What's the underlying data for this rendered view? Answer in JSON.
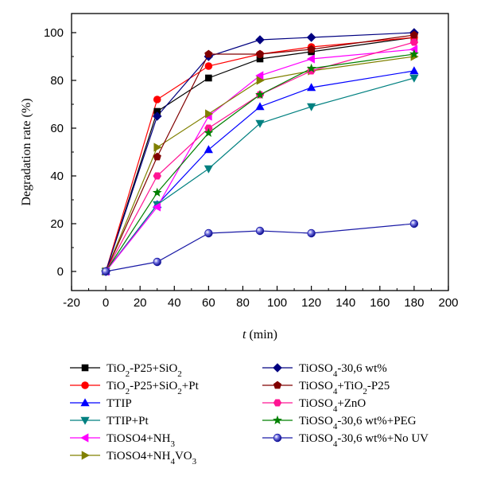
{
  "chart_data": {
    "type": "line",
    "title": "",
    "xlabel_var": "t",
    "xlabel_unit": " (min)",
    "ylabel": "Degradation rate (%)",
    "xlim": [
      -20,
      200
    ],
    "ylim": [
      -8,
      108
    ],
    "xticks": [
      -20,
      0,
      20,
      40,
      60,
      80,
      100,
      120,
      140,
      160,
      180,
      200
    ],
    "yticks": [
      0,
      20,
      40,
      60,
      80,
      100
    ],
    "x": [
      0,
      30,
      60,
      90,
      120,
      180
    ],
    "grid": false,
    "legend_position": "below",
    "series": [
      {
        "name": "TiO2-P25+SiO2",
        "legend": [
          [
            "TiO",
            ""
          ],
          [
            "2",
            "sub"
          ],
          [
            "-P25+SiO",
            ""
          ],
          [
            "2",
            "sub"
          ]
        ],
        "color": "#000000",
        "marker": "square",
        "values": [
          0,
          67,
          81,
          89,
          92,
          98
        ]
      },
      {
        "name": "TiO2-P25+SiO2+Pt",
        "legend": [
          [
            "TiO",
            ""
          ],
          [
            "2",
            "sub"
          ],
          [
            "-P25+SiO",
            ""
          ],
          [
            "2",
            "sub"
          ],
          [
            "+Pt",
            ""
          ]
        ],
        "color": "#ff0000",
        "marker": "circle",
        "values": [
          0,
          72,
          86,
          91,
          94,
          98
        ]
      },
      {
        "name": "TTIP",
        "legend": [
          [
            "TTIP",
            ""
          ]
        ],
        "color": "#0000ff",
        "marker": "triangle-up",
        "values": [
          0,
          28,
          51,
          69,
          77,
          84
        ]
      },
      {
        "name": "TTIP+Pt",
        "legend": [
          [
            "TTIP+Pt",
            ""
          ]
        ],
        "color": "#008080",
        "marker": "triangle-down",
        "values": [
          0,
          28,
          43,
          62,
          69,
          81
        ]
      },
      {
        "name": "TiOSO4+NH3",
        "legend": [
          [
            "TiOSO4+NH",
            ""
          ],
          [
            "3",
            "sub"
          ]
        ],
        "color": "#ff00ff",
        "marker": "triangle-left",
        "values": [
          0,
          27,
          65,
          82,
          89,
          93
        ]
      },
      {
        "name": "TiOSO4+NH4VO3",
        "legend": [
          [
            "TiOSO4+NH",
            ""
          ],
          [
            "4",
            "sub"
          ],
          [
            "VO",
            ""
          ],
          [
            "3",
            "sub"
          ]
        ],
        "color": "#808000",
        "marker": "triangle-right",
        "values": [
          0,
          52,
          66,
          80,
          84,
          90
        ]
      },
      {
        "name": "TiOSO4-30,6 wt%",
        "legend": [
          [
            "TiOSO",
            ""
          ],
          [
            "4",
            "sub"
          ],
          [
            "-30,6 wt%",
            ""
          ]
        ],
        "color": "#000080",
        "marker": "diamond",
        "values": [
          0,
          65,
          90,
          97,
          98,
          100
        ]
      },
      {
        "name": "TiOSO4+TiO2-P25",
        "legend": [
          [
            "TiOSO",
            ""
          ],
          [
            "4",
            "sub"
          ],
          [
            "+TiO",
            ""
          ],
          [
            "2",
            "sub"
          ],
          [
            "-P25",
            ""
          ]
        ],
        "color": "#800000",
        "marker": "pentagon",
        "values": [
          0,
          48,
          91,
          91,
          93,
          99
        ]
      },
      {
        "name": "TiOSO4+ZnO",
        "legend": [
          [
            "TiOSO",
            ""
          ],
          [
            "4",
            "sub"
          ],
          [
            "+ZnO",
            ""
          ]
        ],
        "color": "#ff1493",
        "marker": "hexagon",
        "values": [
          0,
          40,
          60,
          74,
          84,
          96
        ]
      },
      {
        "name": "TiOSO4-30,6 wt%+PEG",
        "legend": [
          [
            "TiOSO",
            ""
          ],
          [
            "4",
            "sub"
          ],
          [
            "-30,6 wt%+PEG",
            ""
          ]
        ],
        "color": "#008000",
        "marker": "star",
        "values": [
          0,
          33,
          58,
          74,
          85,
          91
        ]
      },
      {
        "name": "TiOSO4-30,6 wt%+No UV",
        "legend": [
          [
            "TiOSO",
            ""
          ],
          [
            "4",
            "sub"
          ],
          [
            "-30,6 wt%+No UV",
            ""
          ]
        ],
        "color": "#1a1aa6",
        "marker": "sphere",
        "values": [
          0,
          4,
          16,
          17,
          16,
          20
        ]
      }
    ]
  }
}
